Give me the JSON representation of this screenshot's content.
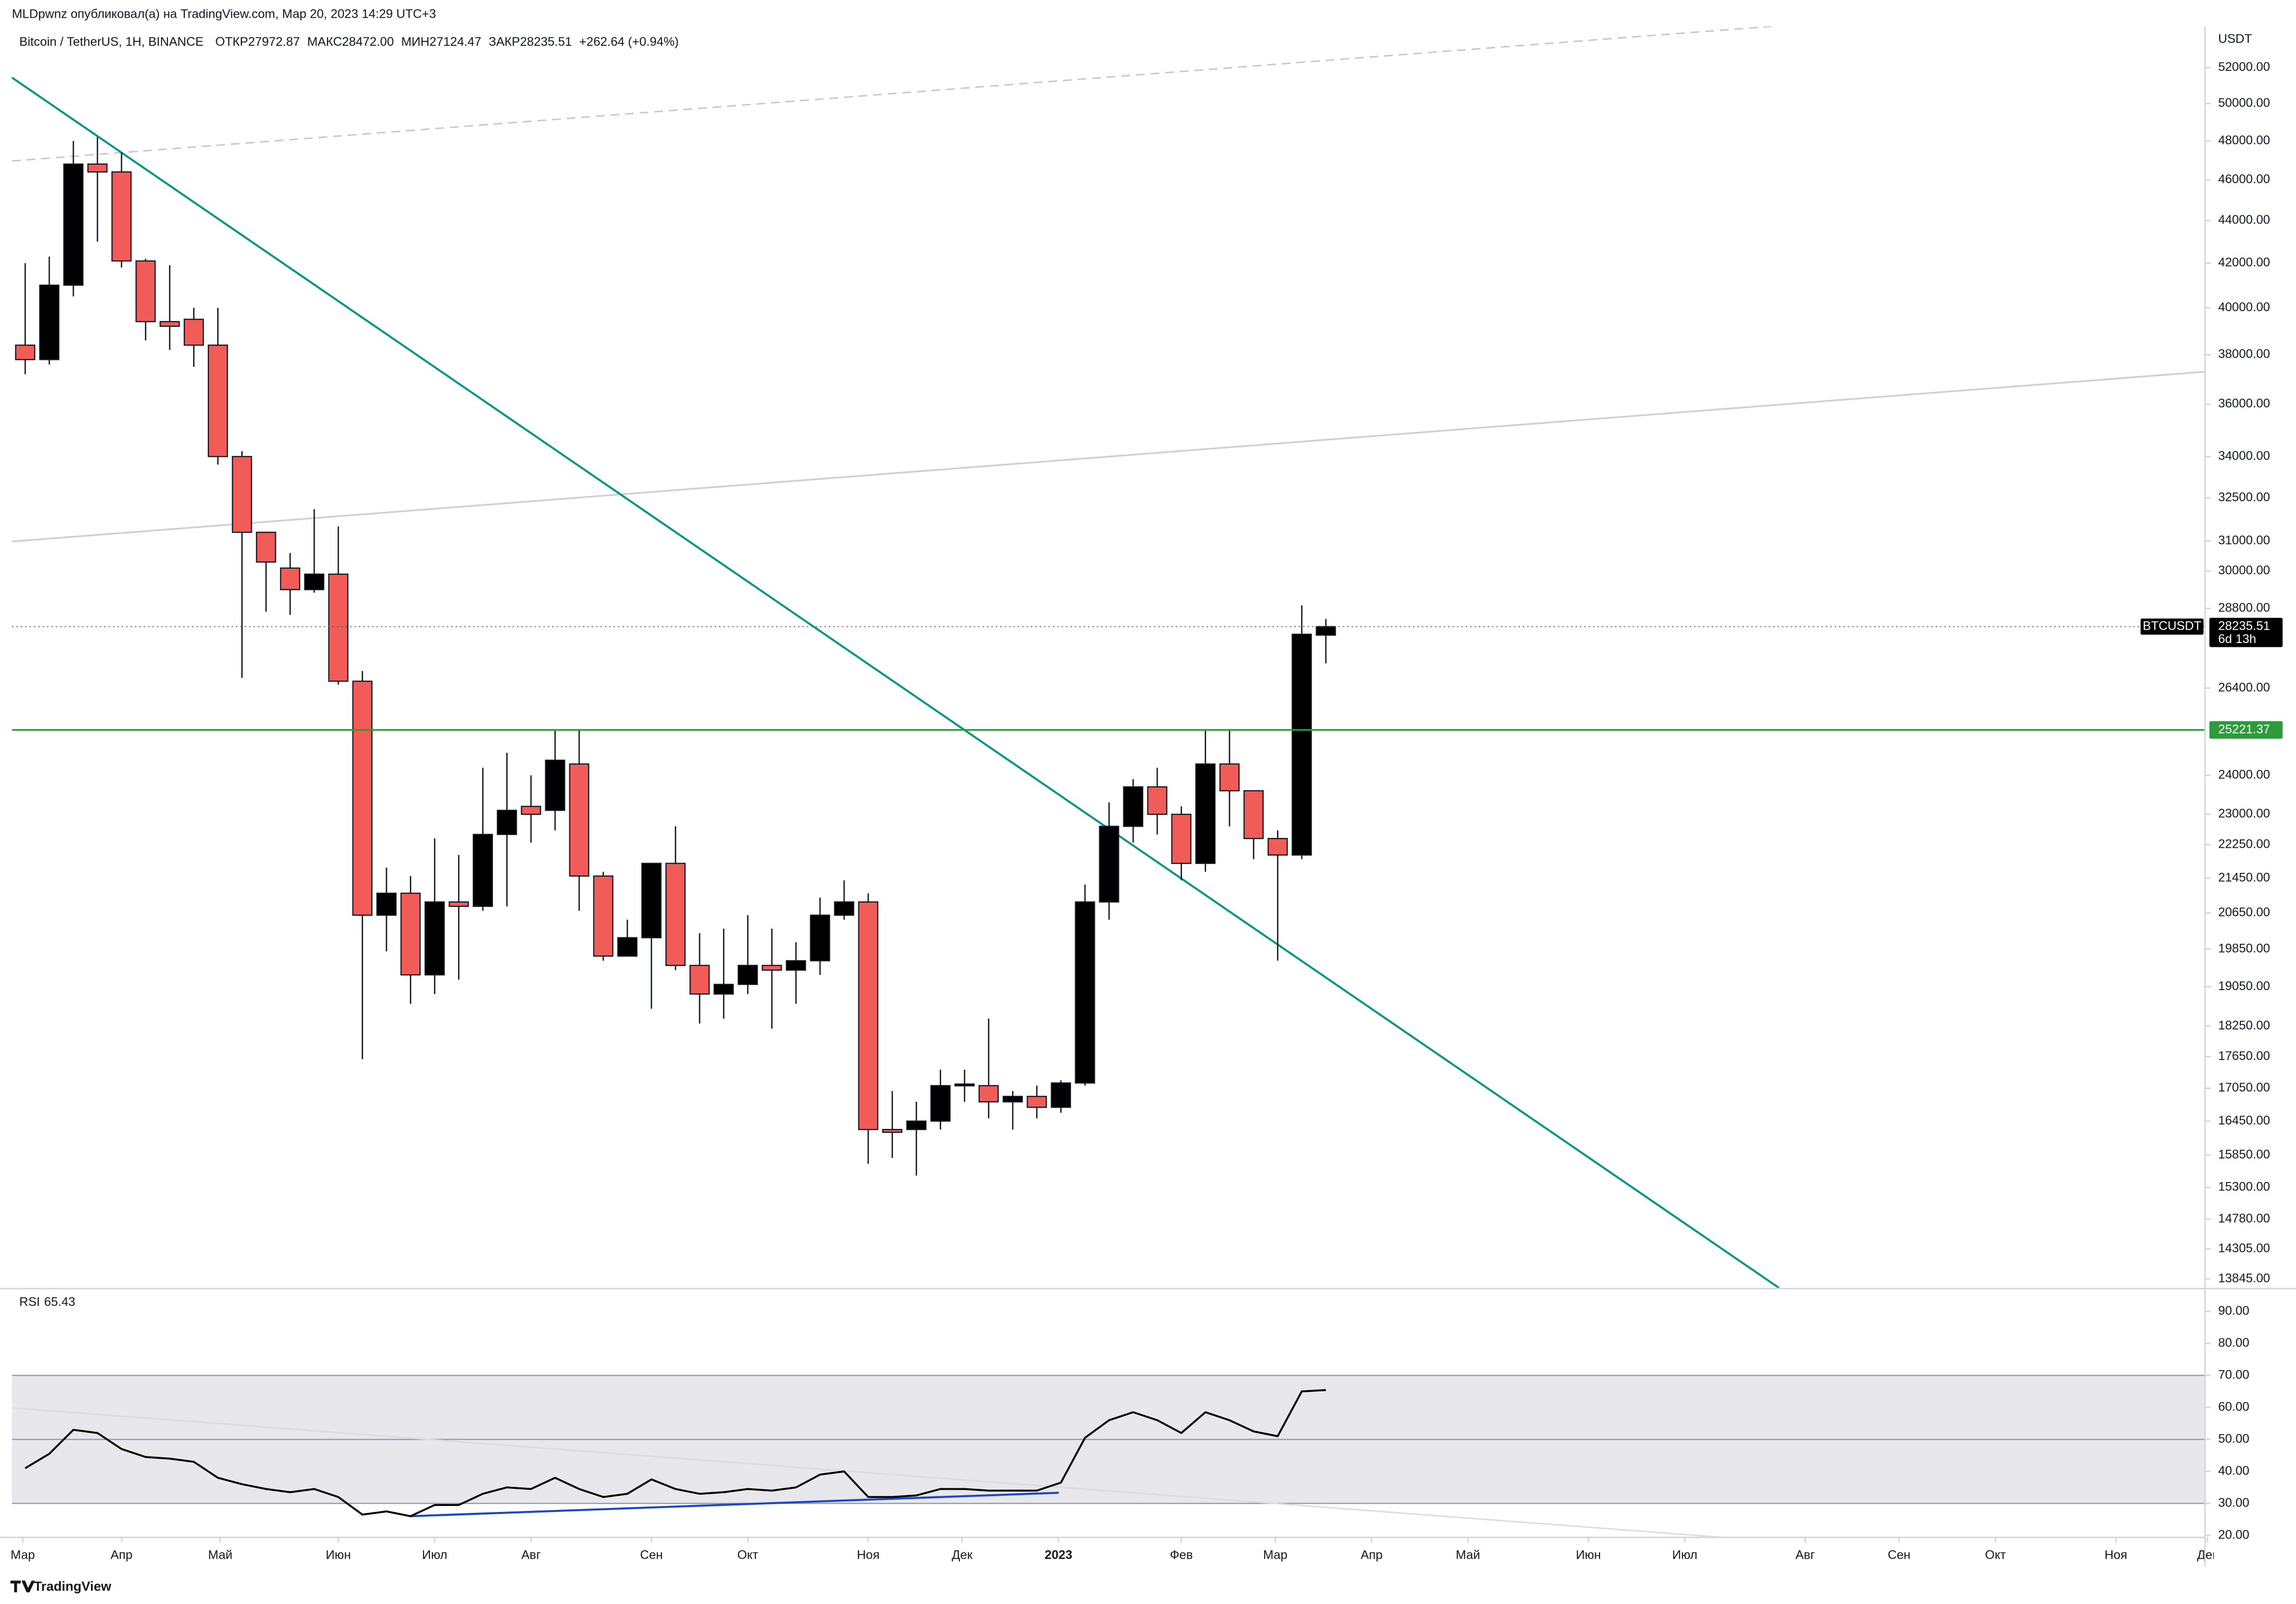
{
  "byline": "MLDpwnz опубликовал(а) на TradingView.com, Мар 20, 2023 14:29 UTC+3",
  "footer": "TradingView",
  "chart_data": [
    {
      "type": "candlestick",
      "title": "Bitcoin / TetherUS, 1Н, BINANCE",
      "ohlc_legend": [
        "ОТКР27972.87",
        "МАКС28472.00",
        "МИН27124.47",
        "ЗАКР28235.51",
        "+262.64 (+0.94%)"
      ],
      "y_unit": "USDT",
      "log_scale": true,
      "up_color": "#000000",
      "down_color": "#f15b58",
      "x": [
        0,
        1,
        2,
        3,
        4,
        5,
        6,
        7,
        8,
        9,
        10,
        11,
        12,
        13,
        14,
        15,
        16,
        17,
        18,
        19,
        20,
        21,
        22,
        23,
        24,
        25,
        26,
        27,
        28,
        29,
        30,
        31,
        32,
        33,
        34,
        35,
        36,
        37,
        38,
        39,
        40,
        41,
        42,
        43,
        44,
        45,
        46,
        47,
        48,
        49,
        50,
        51,
        52,
        53,
        54
      ],
      "open": [
        38400,
        37800,
        41000,
        46800,
        46400,
        42100,
        39400,
        39500,
        38400,
        34000,
        31300,
        30100,
        29400,
        29900,
        26600,
        20600,
        21100,
        19300,
        20900,
        20800,
        22500,
        23200,
        23100,
        24300,
        21500,
        19700,
        20100,
        21800,
        19500,
        18900,
        19100,
        19500,
        19400,
        19600,
        20600,
        20900,
        16300,
        16300,
        16450,
        17100,
        17100,
        16800,
        16900,
        16700,
        17150,
        20900,
        22700,
        23700,
        23000,
        21800,
        24300,
        23600,
        22400,
        22000,
        27972.87
      ],
      "high": [
        42000,
        42300,
        48000,
        48200,
        47400,
        42200,
        41900,
        40000,
        40000,
        34200,
        31300,
        30600,
        32100,
        31500,
        26900,
        21700,
        21500,
        22400,
        22000,
        24200,
        24600,
        24000,
        25200,
        25200,
        21600,
        20500,
        21800,
        22700,
        20200,
        20300,
        20600,
        20300,
        20000,
        21000,
        21400,
        21100,
        17000,
        16800,
        17400,
        17400,
        18400,
        17000,
        17100,
        17200,
        21300,
        23300,
        23900,
        24200,
        23200,
        25200,
        25200,
        23600,
        22600,
        28900,
        28472
      ],
      "low": [
        37200,
        37600,
        40500,
        43000,
        41800,
        38600,
        38200,
        37500,
        33700,
        26700,
        28700,
        28600,
        29300,
        26500,
        17600,
        19800,
        18700,
        18900,
        19200,
        20700,
        20800,
        22300,
        22600,
        20700,
        19600,
        19700,
        18600,
        19400,
        18300,
        18400,
        18900,
        18200,
        18700,
        19300,
        20500,
        15700,
        15800,
        15500,
        16300,
        16800,
        16500,
        16300,
        16500,
        16600,
        17100,
        20500,
        22300,
        22500,
        21400,
        21600,
        22700,
        21900,
        19600,
        21900,
        27124.47
      ],
      "close": [
        37800,
        41000,
        46800,
        46400,
        42100,
        39400,
        39200,
        38400,
        34000,
        31300,
        30300,
        29400,
        29900,
        26600,
        20600,
        21100,
        19300,
        20900,
        20800,
        22500,
        23100,
        23000,
        24400,
        21500,
        19700,
        20100,
        21800,
        19500,
        18900,
        19100,
        19500,
        19400,
        19600,
        20600,
        20900,
        16300,
        16250,
        16450,
        17100,
        17130,
        16800,
        16900,
        16700,
        17150,
        20900,
        22700,
        23700,
        23000,
        21800,
        24300,
        23600,
        22400,
        22000,
        28000,
        28235.51
      ],
      "xlim": [
        -0.55,
        90.5
      ],
      "xticks": [
        {
          "value": -0.1,
          "label": "Мар"
        },
        {
          "value": 4.0,
          "label": "Апр"
        },
        {
          "value": 8.1,
          "label": "Май"
        },
        {
          "value": 13.0,
          "label": "Июн"
        },
        {
          "value": 17.0,
          "label": "Июл"
        },
        {
          "value": 21.0,
          "label": "Авг"
        },
        {
          "value": 26.0,
          "label": "Сен"
        },
        {
          "value": 30.0,
          "label": "Окт"
        },
        {
          "value": 35.0,
          "label": "Ноя"
        },
        {
          "value": 38.9,
          "label": "Дек"
        },
        {
          "value": 42.9,
          "label": "2023"
        },
        {
          "value": 48.0,
          "label": "Фев"
        },
        {
          "value": 51.9,
          "label": "Мар"
        },
        {
          "value": 55.9,
          "label": "Апр"
        },
        {
          "value": 59.9,
          "label": "Май"
        },
        {
          "value": 64.9,
          "label": "Июн"
        },
        {
          "value": 68.9,
          "label": "Июл"
        },
        {
          "value": 73.9,
          "label": "Авг"
        },
        {
          "value": 77.8,
          "label": "Сен"
        },
        {
          "value": 81.8,
          "label": "Окт"
        },
        {
          "value": 86.8,
          "label": "Ноя"
        },
        {
          "value": 90.6,
          "label": "Дек"
        }
      ],
      "ylim": [
        13710,
        54400
      ],
      "yticks": [
        {
          "value": 52000,
          "label": "52000.00"
        },
        {
          "value": 50000,
          "label": "50000.00"
        },
        {
          "value": 48000,
          "label": "48000.00"
        },
        {
          "value": 46000,
          "label": "46000.00"
        },
        {
          "value": 44000,
          "label": "44000.00"
        },
        {
          "value": 42000,
          "label": "42000.00"
        },
        {
          "value": 40000,
          "label": "40000.00"
        },
        {
          "value": 38000,
          "label": "38000.00"
        },
        {
          "value": 36000,
          "label": "36000.00"
        },
        {
          "value": 34000,
          "label": "34000.00"
        },
        {
          "value": 32500,
          "label": "32500.00"
        },
        {
          "value": 31000,
          "label": "31000.00"
        },
        {
          "value": 30000,
          "label": "30000.00"
        },
        {
          "value": 28800,
          "label": "28800.00"
        },
        {
          "value": 26400,
          "label": "26400.00"
        },
        {
          "value": 24000,
          "label": "24000.00"
        },
        {
          "value": 23000,
          "label": "23000.00"
        },
        {
          "value": 22250,
          "label": "22250.00"
        },
        {
          "value": 21450,
          "label": "21450.00"
        },
        {
          "value": 20650,
          "label": "20650.00"
        },
        {
          "value": 19850,
          "label": "19850.00"
        },
        {
          "value": 19050,
          "label": "19050.00"
        },
        {
          "value": 18250,
          "label": "18250.00"
        },
        {
          "value": 17650,
          "label": "17650.00"
        },
        {
          "value": 17050,
          "label": "17050.00"
        },
        {
          "value": 16450,
          "label": "16450.00"
        },
        {
          "value": 15850,
          "label": "15850.00"
        },
        {
          "value": 15300,
          "label": "15300.00"
        },
        {
          "value": 14780,
          "label": "14780.00"
        },
        {
          "value": 14305,
          "label": "14305.00"
        },
        {
          "value": 13845,
          "label": "13845.00"
        }
      ],
      "level": {
        "value": 25221.37,
        "color": "#2e9b3a"
      },
      "last_price": {
        "value": 28235.51,
        "symbol": "BTCUSDT",
        "countdown": "6d 13h"
      }
    },
    {
      "type": "line",
      "series": [
        {
          "name": "RSI",
          "color": "#000000",
          "values": [
            41,
            45.5,
            53,
            52,
            47,
            44.5,
            44,
            43,
            38,
            36,
            34.5,
            33.5,
            34.5,
            32,
            26.5,
            27.5,
            26,
            29.5,
            29.5,
            33,
            35,
            34.5,
            38,
            34.5,
            32,
            33,
            37.5,
            34.5,
            33,
            33.5,
            34.5,
            34,
            35,
            39,
            40,
            32,
            32,
            32.5,
            34.5,
            34.5,
            34,
            34,
            34,
            36.5,
            50.5,
            56,
            58.5,
            56,
            52,
            58.5,
            56,
            52.5,
            51,
            65,
            65.43
          ]
        }
      ],
      "ylim": [
        19.6,
        96.9
      ],
      "yticks": [
        {
          "value": 90,
          "label": "90.00"
        },
        {
          "value": 80,
          "label": "80.00"
        },
        {
          "value": 70,
          "label": "70.00"
        },
        {
          "value": 60,
          "label": "60.00"
        },
        {
          "value": 50,
          "label": "50.00"
        },
        {
          "value": 40,
          "label": "40.00"
        },
        {
          "value": 30,
          "label": "30.00"
        },
        {
          "value": 20,
          "label": "20.00"
        }
      ],
      "band": [
        30,
        70
      ],
      "midline": 50,
      "band_color": "#e8e8ec"
    }
  ]
}
